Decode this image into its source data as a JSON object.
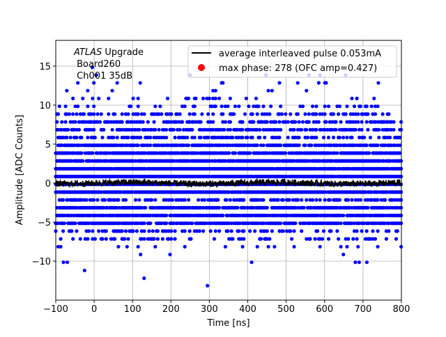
{
  "chart_data": {
    "type": "scatter",
    "xlabel": "Time [ns]",
    "ylabel": "Amplitude [ADC Counts]",
    "xlim": [
      -100,
      800
    ],
    "ylim": [
      -15,
      18.3
    ],
    "xticks": [
      -100,
      0,
      100,
      200,
      300,
      400,
      500,
      600,
      700,
      800
    ],
    "yticks": [
      -10,
      -5,
      0,
      5,
      10,
      15
    ],
    "grid": true,
    "annotation": {
      "italic": "ATLAS",
      "rest": " Upgrade",
      "line2": " Board260",
      "line3": " Ch001 35dB"
    },
    "legend": {
      "placement": "top-right",
      "entries": [
        {
          "label": "average interleaved pulse 0.053mA",
          "marker": "line",
          "color": "#000000"
        },
        {
          "label": "max phase: 278 (OFC amp=0.427)",
          "marker": "dot",
          "color": "#ff0000"
        }
      ]
    },
    "series": [
      {
        "kind": "scatter",
        "color": "#0000ff",
        "description_levels": [
          {
            "y": 14.85,
            "density": 0.004
          },
          {
            "y": 13.85,
            "density": 0.008
          },
          {
            "y": 12.85,
            "density": 0.015
          },
          {
            "y": 11.85,
            "density": 0.03
          },
          {
            "y": 10.85,
            "density": 0.06
          },
          {
            "y": 9.85,
            "density": 0.15
          },
          {
            "y": 8.85,
            "density": 0.35
          },
          {
            "y": 7.85,
            "density": 0.5
          },
          {
            "y": 6.85,
            "density": 0.6
          },
          {
            "y": 5.85,
            "density": 0.5
          },
          {
            "y": 4.85,
            "density": 0.75
          },
          {
            "y": 3.85,
            "density": 0.85
          },
          {
            "y": 2.85,
            "density": 0.92
          },
          {
            "y": 1.85,
            "density": 0.97
          },
          {
            "y": 0.85,
            "density": 0.98
          },
          {
            "y": -0.15,
            "density": 0.98
          },
          {
            "y": -1.15,
            "density": 0.95
          },
          {
            "y": -2.15,
            "density": 0.5
          },
          {
            "y": -3.15,
            "density": 0.85
          },
          {
            "y": -4.15,
            "density": 0.85
          },
          {
            "y": -5.15,
            "density": 0.85
          },
          {
            "y": -6.15,
            "density": 0.25
          },
          {
            "y": -7.15,
            "density": 0.25
          },
          {
            "y": -8.15,
            "density": 0.05
          },
          {
            "y": -9.15,
            "density": 0.02
          }
        ],
        "outliers": [
          {
            "x": -80,
            "y": -10.15
          },
          {
            "x": -70,
            "y": -10.15
          },
          {
            "x": -25,
            "y": -11.2
          },
          {
            "x": 130,
            "y": -12.2
          },
          {
            "x": 295,
            "y": -13.15
          },
          {
            "x": 410,
            "y": -10.15
          },
          {
            "x": 680,
            "y": -10.15
          },
          {
            "x": 690,
            "y": -10.15
          },
          {
            "x": 710,
            "y": -10.15
          },
          {
            "x": -5,
            "y": 14.85
          },
          {
            "x": 250,
            "y": 13.85
          },
          {
            "x": 655,
            "y": 13.85
          },
          {
            "x": 60,
            "y": 12.85
          },
          {
            "x": 120,
            "y": 12.85
          },
          {
            "x": 530,
            "y": 12.85
          },
          {
            "x": 740,
            "y": 12.85
          }
        ]
      },
      {
        "kind": "line",
        "name": "average interleaved pulse 0.053mA",
        "color": "#000000",
        "mean": 0.0,
        "noise_amplitude": 0.5
      }
    ]
  }
}
